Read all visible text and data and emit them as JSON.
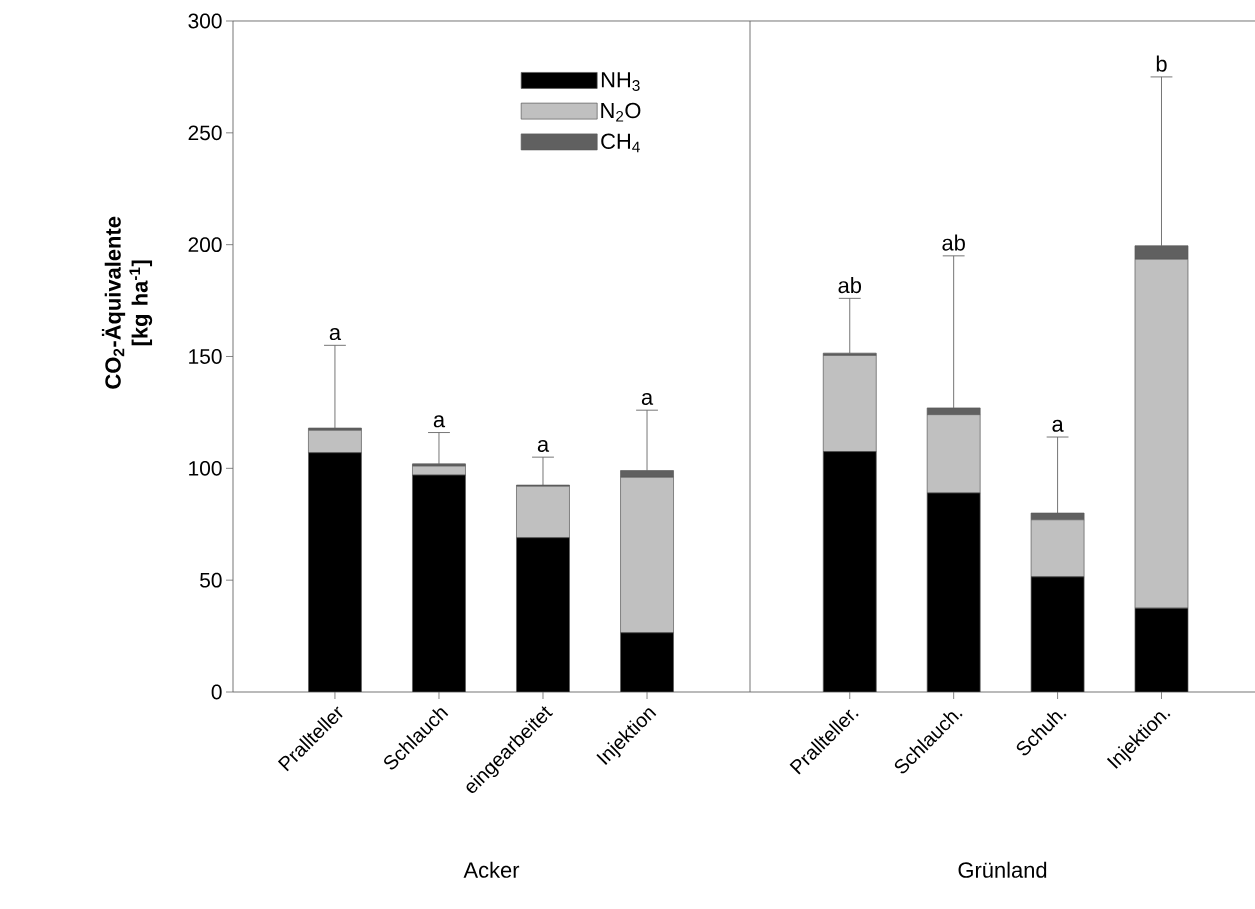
{
  "chart_data": [
    {
      "type": "bar",
      "stacked": true,
      "xlabel": "Acker",
      "ylabel": "**CO$_{2}$-Äquivalente [kg ha$^{-1}$]**",
      "categories": [
        "Prallteller",
        "Schlauch",
        "eingearbeitet",
        "Injektion"
      ],
      "series": [
        {
          "name": "NH$_{3}$",
          "color": "#000000",
          "values": [
            107,
            97,
            69,
            26.5
          ]
        },
        {
          "name": "N$_{2}$O",
          "color": "#c0c0c0",
          "values": [
            10,
            4,
            23,
            69.5
          ]
        },
        {
          "name": "CH$_{4}$",
          "color": "#606060",
          "values": [
            1,
            1,
            0.5,
            3
          ],
          "errors": [
            [
              118,
              155
            ],
            [
              102,
              116
            ],
            [
              92.5,
              105
            ],
            [
              99,
              126
            ]
          ]
        }
      ],
      "ylim": [
        0,
        300
      ],
      "yticks": [
        0,
        50,
        100,
        150,
        200,
        250,
        300
      ],
      "legend": "top right",
      "annotations": [
        {
          "text": "a",
          "x": "Prallteller",
          "y": 155
        },
        {
          "text": "a",
          "x": "Schlauch",
          "y": 116
        },
        {
          "text": "a",
          "x": "eingearbeitet",
          "y": 105
        },
        {
          "text": "a",
          "x": "Injektion",
          "y": 126
        }
      ]
    },
    {
      "type": "bar",
      "stacked": true,
      "xlabel": "Grünland",
      "tick_labels": "x",
      "categories": [
        "Prallteller.",
        "Schlauch.",
        "Schuh.",
        "Injektion."
      ],
      "series": [
        {
          "color": "#000000",
          "values": [
            107.5,
            89,
            51.5,
            37.5
          ]
        },
        {
          "color": "#c0c0c0",
          "values": [
            43,
            35,
            25.5,
            156
          ]
        },
        {
          "color": "#606060",
          "values": [
            1,
            3,
            3,
            6
          ],
          "errors": [
            [
              151.5,
              176
            ],
            [
              127,
              195
            ],
            [
              80,
              114
            ],
            [
              199.5,
              275
            ]
          ]
        }
      ],
      "ylim": [
        0,
        300
      ],
      "yticks": [
        0,
        50,
        100,
        150,
        200,
        250,
        300
      ],
      "annotations": [
        {
          "text": "ab",
          "x": "Prallteller.",
          "y": 176
        },
        {
          "text": "ab",
          "x": "Schlauch.",
          "y": 195
        },
        {
          "text": "a",
          "x": "Schuh.",
          "y": 114
        },
        {
          "text": "b",
          "x": "Injektion.",
          "y": 275
        }
      ]
    }
  ]
}
